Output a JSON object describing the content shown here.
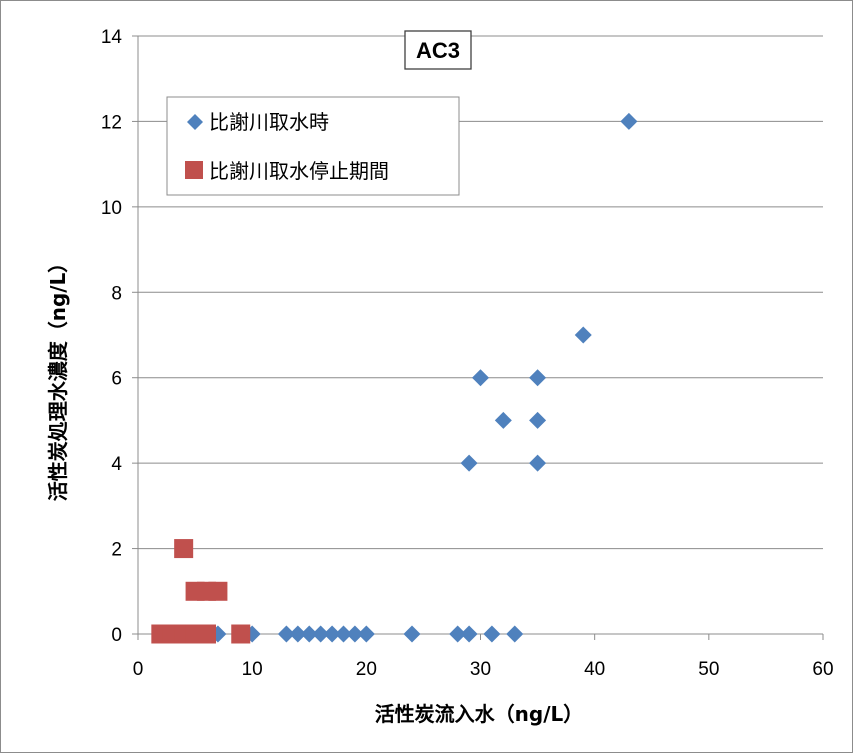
{
  "chart_data": {
    "type": "scatter",
    "title": "AC3",
    "xlabel": "活性炭流入水（ng/L）",
    "ylabel": "活性炭処理水濃度（ng/L）",
    "xlim": [
      0,
      60
    ],
    "ylim": [
      0,
      14
    ],
    "xticks": [
      0,
      10,
      20,
      30,
      40,
      50,
      60
    ],
    "yticks": [
      0,
      2,
      4,
      6,
      8,
      10,
      12,
      14
    ],
    "grid": "horizontal",
    "legend_position": "top-left",
    "series": [
      {
        "name": "比謝川取水時",
        "marker": "diamond",
        "color": "#4f81bd",
        "x": [
          2,
          3,
          4,
          5,
          6,
          7,
          10,
          13,
          14,
          15,
          16,
          17,
          18,
          19,
          20,
          24,
          28,
          29,
          31,
          33,
          29,
          30,
          32,
          35,
          35,
          35,
          39,
          43
        ],
        "y": [
          0,
          0,
          0,
          0,
          0,
          0,
          0,
          0,
          0,
          0,
          0,
          0,
          0,
          0,
          0,
          0,
          0,
          0,
          0,
          0,
          4,
          6,
          5,
          4,
          5,
          6,
          7,
          12
        ]
      },
      {
        "name": "比謝川取水停止期間",
        "marker": "square",
        "color": "#c0504d",
        "x": [
          2,
          3,
          4,
          5,
          6,
          9,
          4,
          5,
          6,
          7
        ],
        "y": [
          0,
          0,
          0,
          0,
          0,
          0,
          2,
          1,
          1,
          1
        ]
      }
    ]
  }
}
